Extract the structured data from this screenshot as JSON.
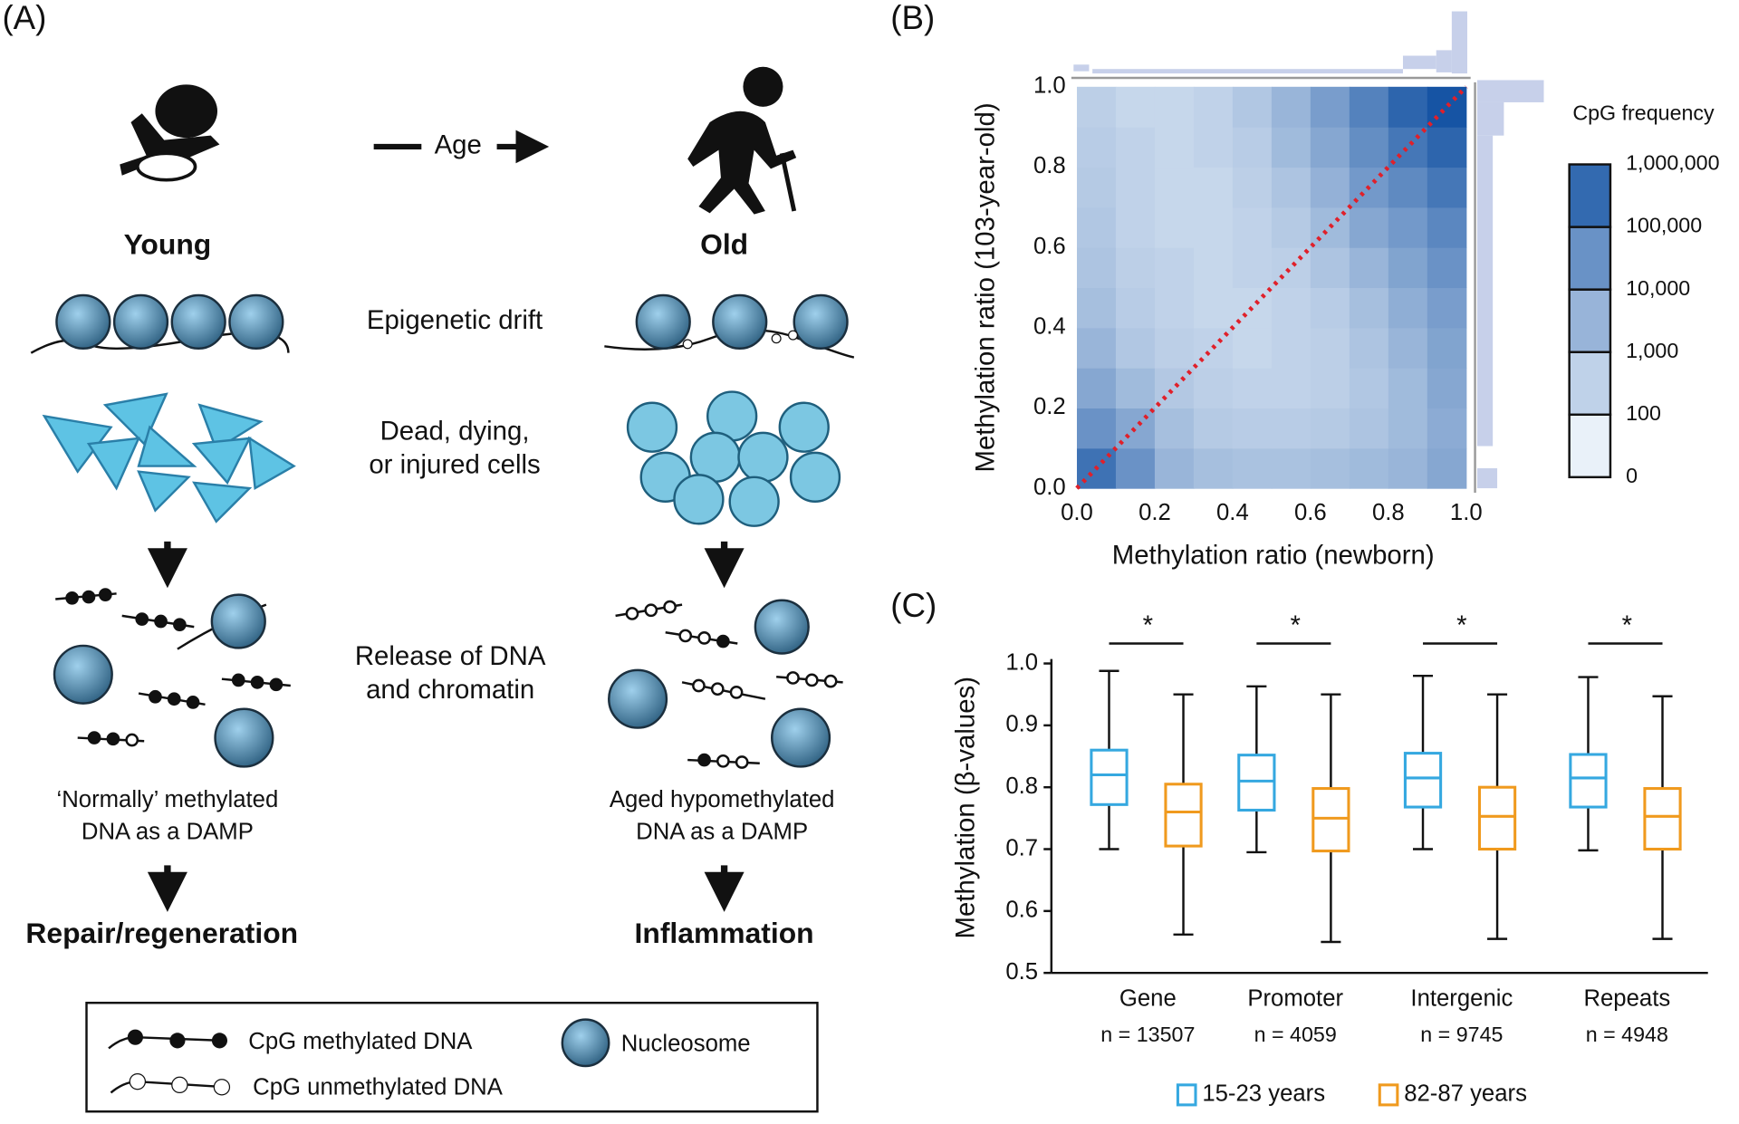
{
  "diagram": {
    "panel_label": "(A)",
    "arrow_label": "Age",
    "young": "Young",
    "old": "Old",
    "step1": "Epigenetic drift",
    "step2": [
      "Dead, dying,",
      "or injured cells"
    ],
    "step3": [
      "Release of DNA",
      "and chromatin"
    ],
    "young_damp": [
      "‘Normally’ methylated",
      "DNA as a DAMP"
    ],
    "old_damp": [
      "Aged hypomethylated",
      "DNA as a DAMP"
    ],
    "young_outcome": "Repair/regeneration",
    "old_outcome": "Inflammation",
    "legend": [
      "CpG methylated DNA",
      "CpG unmethylated DNA",
      "Nucleosome"
    ]
  },
  "chart_data": [
    {
      "type": "hexbin",
      "panel_label": "(B)",
      "xlabel": "Methylation ratio (newborn)",
      "ylabel": "Methylation ratio (103-year-old)",
      "xlim": [
        0,
        1
      ],
      "ylim": [
        0,
        1
      ],
      "xticks": [
        {
          "value": 0,
          "label": "0.0"
        },
        0.2,
        0.4,
        0.6,
        0.8,
        {
          "value": 1,
          "label": "1.0"
        }
      ],
      "yticks": [
        {
          "value": 0,
          "label": "0.0"
        },
        0.2,
        0.4,
        0.6,
        0.8,
        {
          "value": 1,
          "label": "1.0"
        }
      ],
      "xbins": [
        0,
        0.1,
        0.2,
        0.3,
        0.4,
        0.5,
        0.6,
        0.7,
        0.8,
        0.9,
        1
      ],
      "ybins": [
        0,
        0.1,
        0.2,
        0.3,
        0.4,
        0.5,
        0.6,
        0.7,
        0.8,
        0.9,
        1
      ],
      "z": [
        [
          200000,
          30000,
          3000,
          1500,
          1200,
          1200,
          1500,
          2000,
          3000,
          8000
        ],
        [
          30000,
          8000,
          1500,
          600,
          500,
          500,
          600,
          1000,
          2000,
          6000
        ],
        [
          8000,
          2000,
          700,
          400,
          300,
          300,
          400,
          800,
          2000,
          8000
        ],
        [
          3000,
          800,
          400,
          300,
          200,
          300,
          400,
          1000,
          3000,
          10000
        ],
        [
          1500,
          500,
          300,
          200,
          200,
          300,
          500,
          1500,
          5000,
          15000
        ],
        [
          1000,
          400,
          300,
          200,
          300,
          400,
          1000,
          3000,
          10000,
          30000
        ],
        [
          800,
          300,
          200,
          200,
          300,
          600,
          2000,
          8000,
          20000,
          60000
        ],
        [
          600,
          300,
          200,
          200,
          400,
          1000,
          4000,
          20000,
          50000,
          150000
        ],
        [
          500,
          300,
          200,
          300,
          500,
          2000,
          8000,
          40000,
          150000,
          400000
        ],
        [
          400,
          200,
          200,
          300,
          800,
          3000,
          15000,
          80000,
          400000,
          1000000
        ]
      ],
      "colorbar_title": "CpG frequency",
      "colorbar_ticks": [
        0,
        100,
        {
          "value": 1000,
          "label": "1,000"
        },
        {
          "value": 10000,
          "label": "10,000"
        },
        {
          "value": 100000,
          "label": "100,000"
        },
        {
          "value": 1000000,
          "label": "1,000,000"
        }
      ],
      "identity_line_color": "#e0202a"
    },
    {
      "type": "box",
      "panel_label": "(C)",
      "ylabel": "Methylation (β-values)",
      "categories": [
        "Gene",
        "Promoter",
        "Intergenic",
        "Repeats"
      ],
      "category_notes": [
        "n = 13507",
        "n = 4059",
        "n = 9745",
        "n = 4948"
      ],
      "ylim": [
        0.5,
        1
      ],
      "yticks": [
        0.5,
        0.6,
        0.7,
        0.8,
        0.9,
        {
          "value": 1,
          "label": "1.0"
        }
      ],
      "annotations": [
        "*",
        "*",
        "*",
        "*"
      ],
      "series": [
        {
          "name": "15-23 years",
          "color": "#35a8e0",
          "values": [
            {
              "whislo": 0.7,
              "q1": 0.772,
              "med": 0.82,
              "q3": 0.86,
              "whishi": 0.988
            },
            {
              "whislo": 0.695,
              "q1": 0.763,
              "med": 0.81,
              "q3": 0.852,
              "whishi": 0.963
            },
            {
              "whislo": 0.7,
              "q1": 0.768,
              "med": 0.815,
              "q3": 0.855,
              "whishi": 0.98
            },
            {
              "whislo": 0.698,
              "q1": 0.768,
              "med": 0.815,
              "q3": 0.853,
              "whishi": 0.978
            }
          ]
        },
        {
          "name": "82-87 years",
          "color": "#f09a1e",
          "values": [
            {
              "whislo": 0.562,
              "q1": 0.705,
              "med": 0.76,
              "q3": 0.805,
              "whishi": 0.95
            },
            {
              "whislo": 0.55,
              "q1": 0.697,
              "med": 0.75,
              "q3": 0.798,
              "whishi": 0.95
            },
            {
              "whislo": 0.555,
              "q1": 0.7,
              "med": 0.753,
              "q3": 0.8,
              "whishi": 0.95
            },
            {
              "whislo": 0.555,
              "q1": 0.7,
              "med": 0.753,
              "q3": 0.798,
              "whishi": 0.947
            }
          ]
        }
      ]
    }
  ]
}
